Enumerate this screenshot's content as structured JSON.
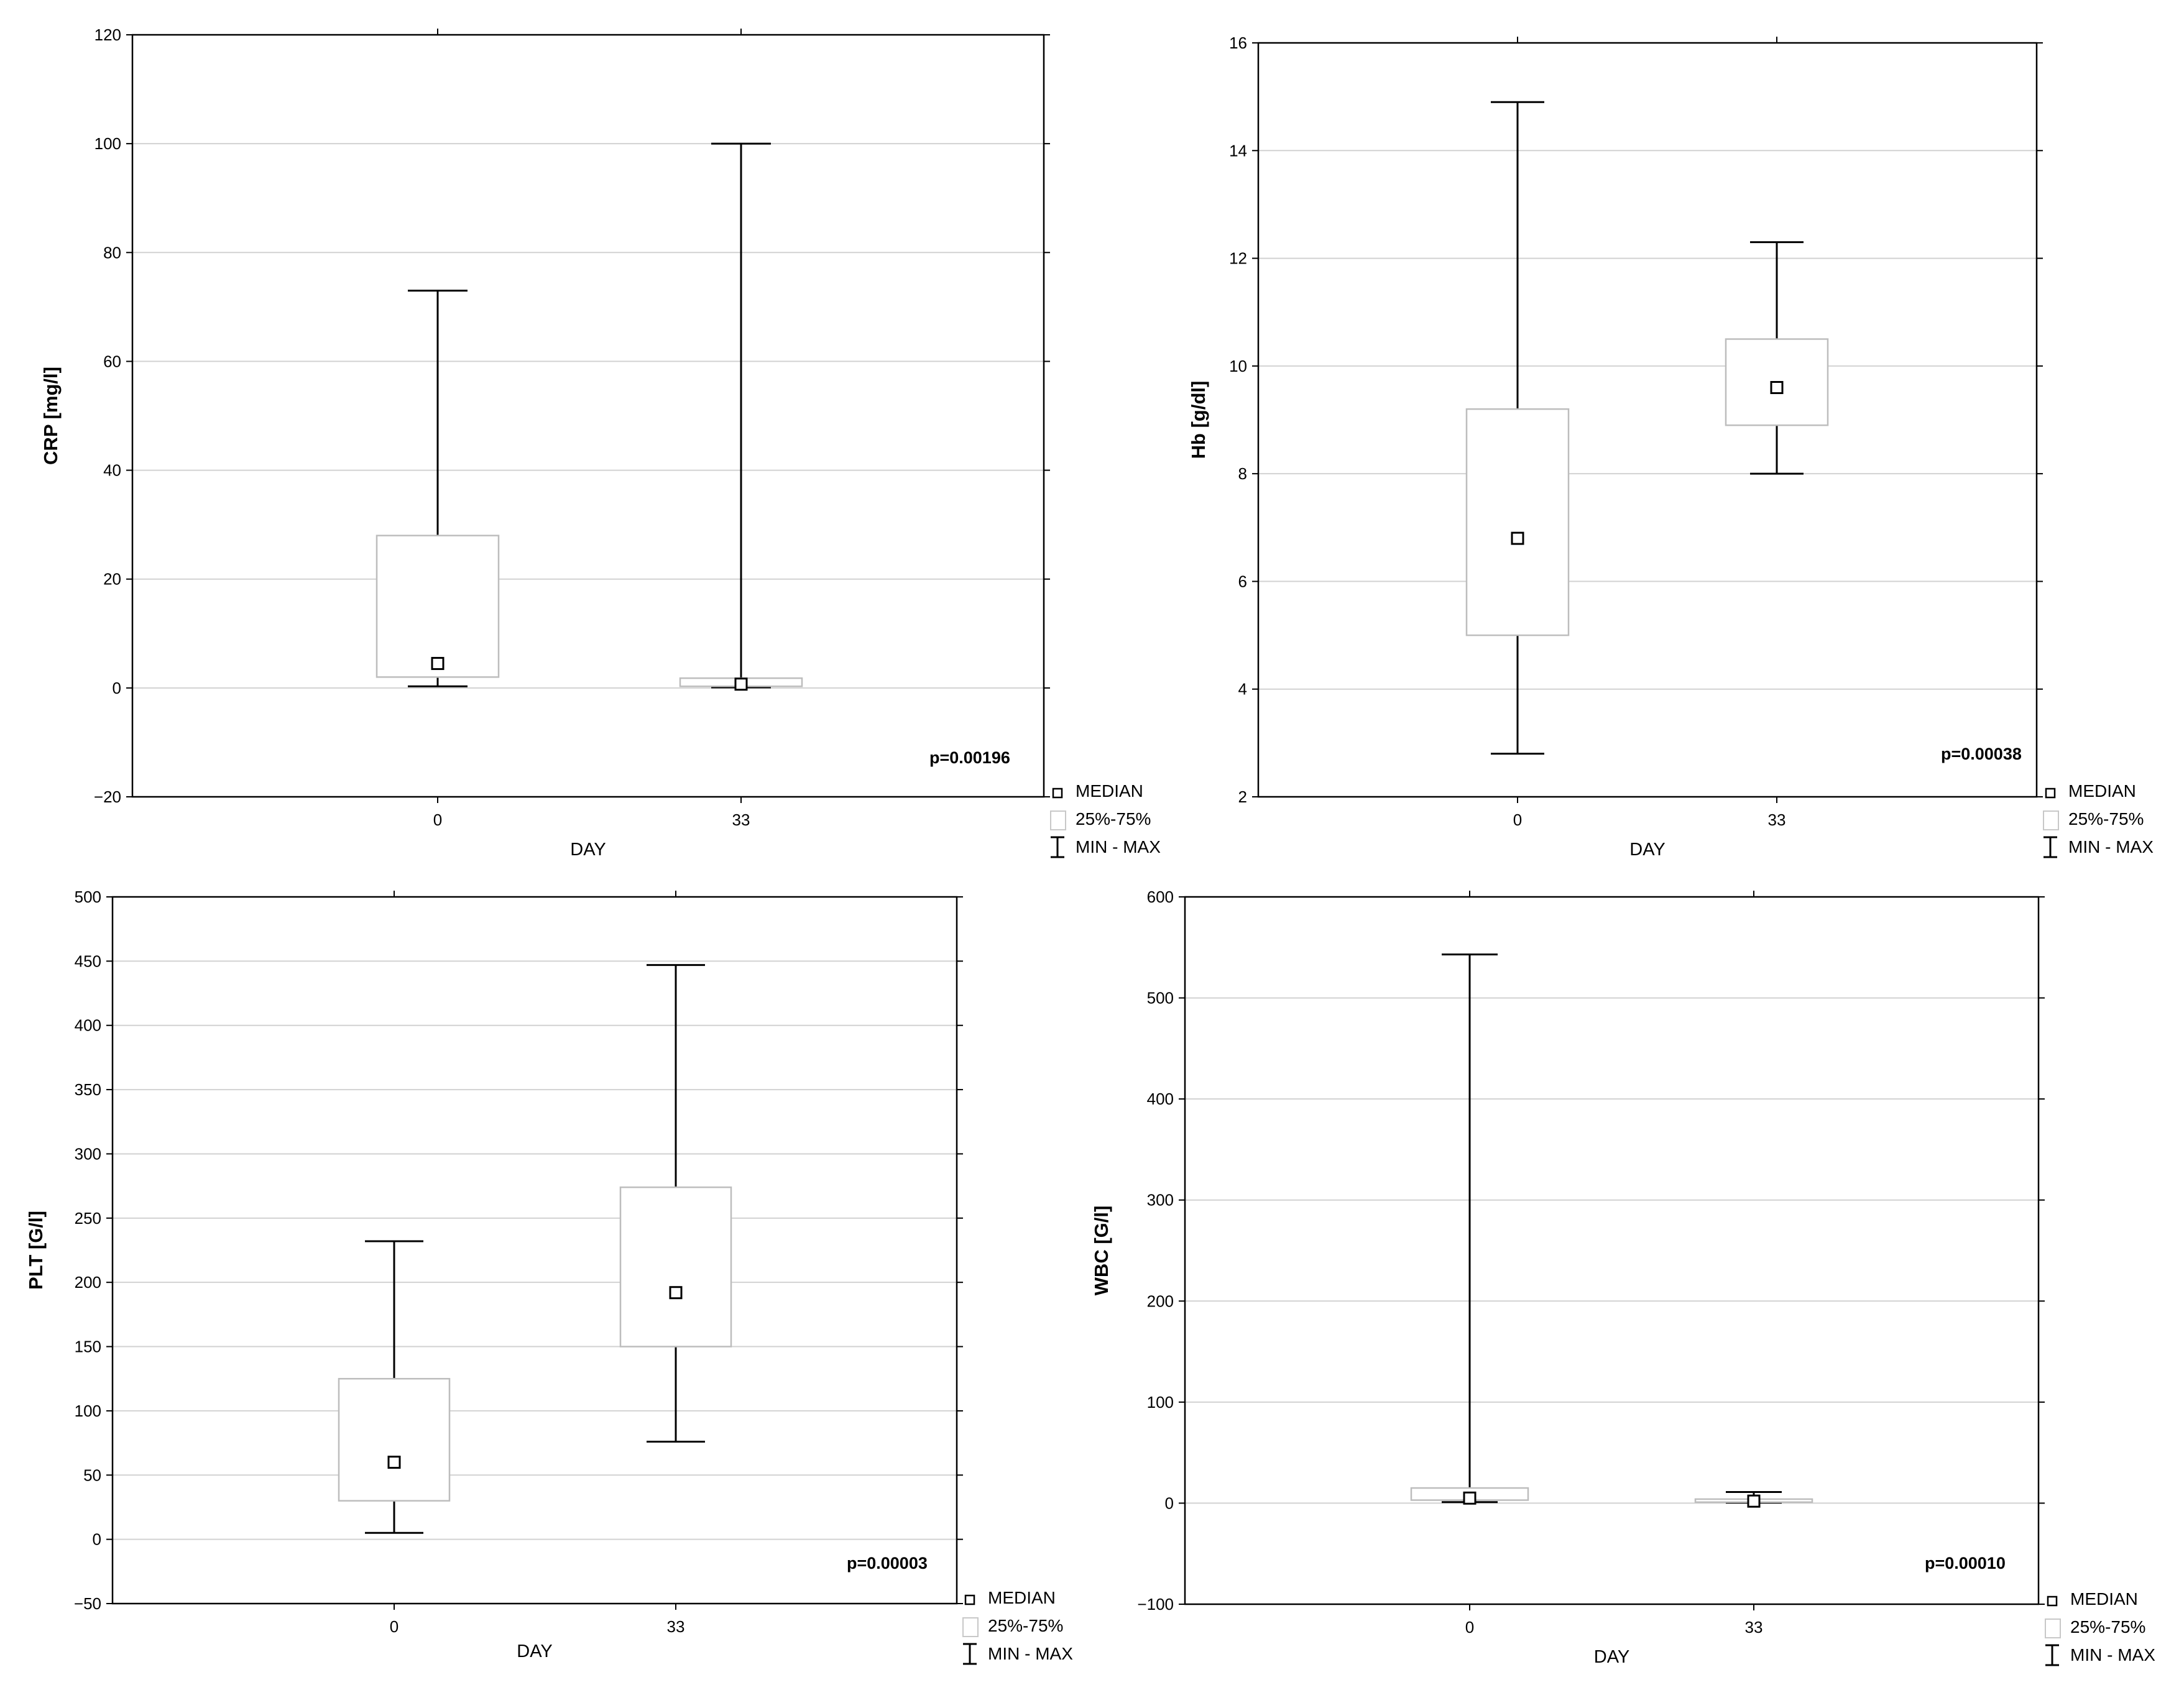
{
  "chart_data": [
    {
      "type": "boxplot",
      "ylabel": "CRP [mg/l]",
      "xlabel": "DAY",
      "categories": [
        "0",
        "33"
      ],
      "ylim": [
        -20,
        120
      ],
      "yticks": [
        -20,
        0,
        20,
        40,
        60,
        80,
        100,
        120
      ],
      "yticklabels": [
        "−20",
        "0",
        "20",
        "40",
        "60",
        "80",
        "100",
        "120"
      ],
      "grid": true,
      "boxes": [
        {
          "category": "0",
          "median": 4.5,
          "q1": 2,
          "q3": 28,
          "min": 0.3,
          "max": 73
        },
        {
          "category": "33",
          "median": 0.7,
          "q1": 0.3,
          "q3": 1.8,
          "min": 0.1,
          "max": 100
        }
      ],
      "annotation": "p=0.00196",
      "legend": [
        "MEDIAN",
        "25%-75%",
        "MIN - MAX"
      ],
      "legend_position": "right-bottom"
    },
    {
      "type": "boxplot",
      "ylabel": "Hb [g/dl]",
      "xlabel": "DAY",
      "categories": [
        "0",
        "33"
      ],
      "ylim": [
        2,
        16
      ],
      "yticks": [
        2,
        4,
        6,
        8,
        10,
        12,
        14,
        16
      ],
      "yticklabels": [
        "2",
        "4",
        "6",
        "8",
        "10",
        "12",
        "14",
        "16"
      ],
      "grid": true,
      "boxes": [
        {
          "category": "0",
          "median": 6.8,
          "q1": 5,
          "q3": 9.2,
          "min": 2.8,
          "max": 14.9
        },
        {
          "category": "33",
          "median": 9.6,
          "q1": 8.9,
          "q3": 10.5,
          "min": 8,
          "max": 12.3
        }
      ],
      "annotation": "p=0.00038",
      "legend": [
        "MEDIAN",
        "25%-75%",
        "MIN - MAX"
      ],
      "legend_position": "right-bottom"
    },
    {
      "type": "boxplot",
      "ylabel": "PLT [G/l]",
      "xlabel": "DAY",
      "categories": [
        "0",
        "33"
      ],
      "ylim": [
        -50,
        500
      ],
      "yticks": [
        -50,
        0,
        50,
        100,
        150,
        200,
        250,
        300,
        350,
        400,
        450,
        500
      ],
      "yticklabels": [
        "−50",
        "0",
        "50",
        "100",
        "150",
        "200",
        "250",
        "300",
        "350",
        "400",
        "450",
        "500"
      ],
      "grid": true,
      "boxes": [
        {
          "category": "0",
          "median": 60,
          "q1": 30,
          "q3": 125,
          "min": 5,
          "max": 232
        },
        {
          "category": "33",
          "median": 192,
          "q1": 150,
          "q3": 274,
          "min": 76,
          "max": 447
        }
      ],
      "annotation": "p=0.00003",
      "legend": [
        "MEDIAN",
        "25%-75%",
        "MIN - MAX"
      ],
      "legend_position": "right-bottom"
    },
    {
      "type": "boxplot",
      "ylabel": "WBC [G/l]",
      "xlabel": "DAY",
      "categories": [
        "0",
        "33"
      ],
      "ylim": [
        -100,
        600
      ],
      "yticks": [
        -100,
        0,
        100,
        200,
        300,
        400,
        500,
        600
      ],
      "yticklabels": [
        "−100",
        "0",
        "100",
        "200",
        "300",
        "400",
        "500",
        "600"
      ],
      "grid": true,
      "boxes": [
        {
          "category": "0",
          "median": 5,
          "q1": 3,
          "q3": 15,
          "min": 1,
          "max": 543
        },
        {
          "category": "33",
          "median": 2,
          "q1": 1,
          "q3": 4,
          "min": 0.5,
          "max": 11
        }
      ],
      "annotation": "p=0.00010",
      "legend": [
        "MEDIAN",
        "25%-75%",
        "MIN - MAX"
      ],
      "legend_position": "right-bottom"
    }
  ]
}
